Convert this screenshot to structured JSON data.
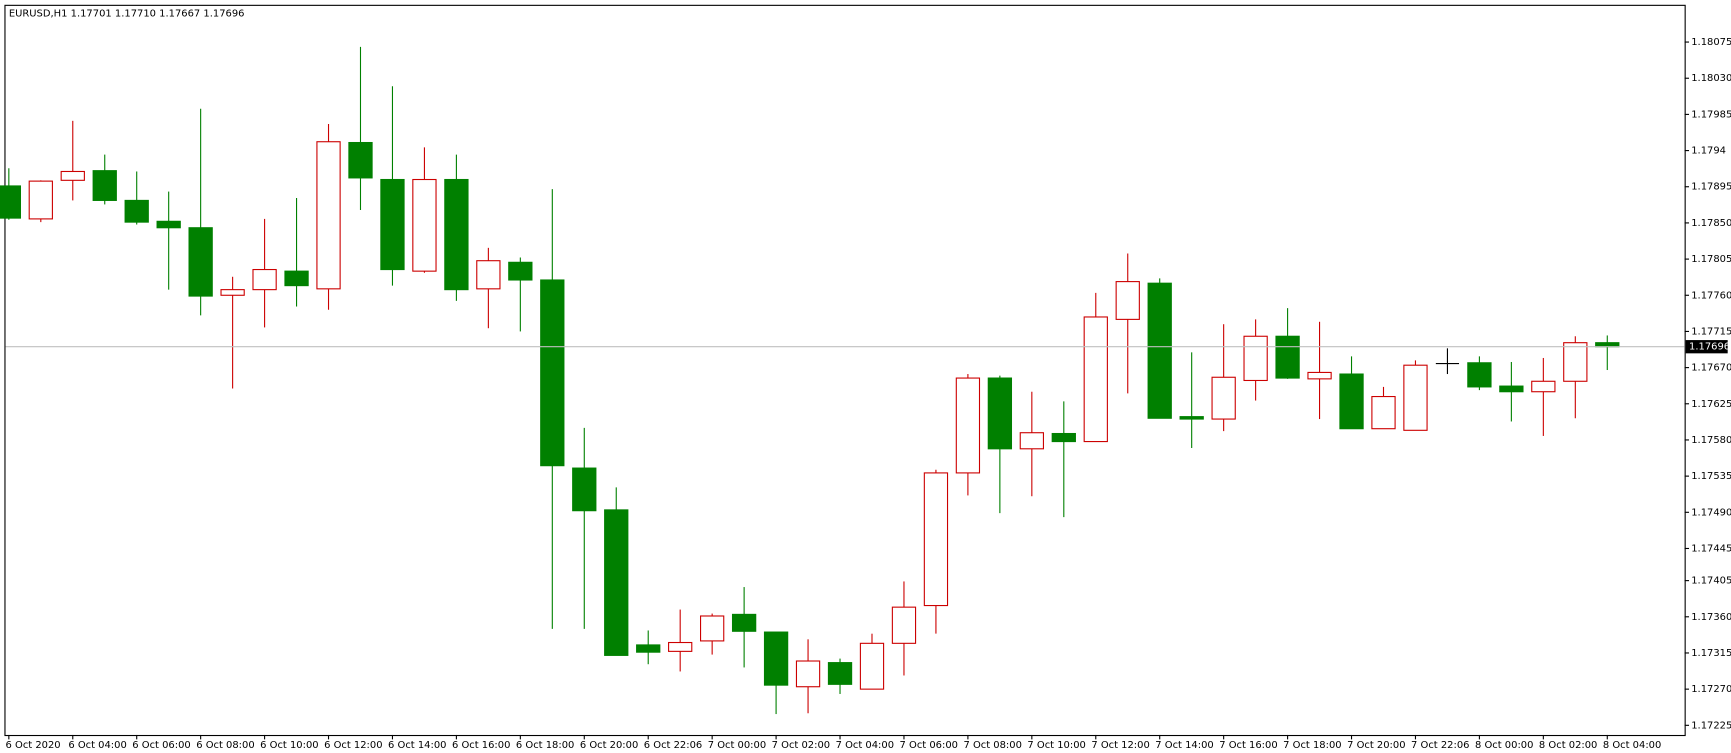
{
  "chart_data": {
    "type": "candlestick",
    "title": "EURUSD,H1  1.17701 1.17710 1.17667 1.17696",
    "categories": [
      "6 Oct 2020",
      null,
      "6 Oct 04:00",
      null,
      "6 Oct 06:00",
      null,
      "6 Oct 08:00",
      null,
      "6 Oct 10:00",
      null,
      "6 Oct 12:00",
      null,
      "6 Oct 14:00",
      null,
      "6 Oct 16:00",
      null,
      "6 Oct 18:00",
      null,
      "6 Oct 20:00",
      null,
      "6 Oct 22:06",
      null,
      "7 Oct 00:00",
      null,
      "7 Oct 02:00",
      null,
      "7 Oct 04:00",
      null,
      "7 Oct 06:00",
      null,
      "7 Oct 08:00",
      null,
      "7 Oct 10:00",
      null,
      "7 Oct 12:00",
      null,
      "7 Oct 14:00",
      null,
      "7 Oct 16:00",
      null,
      "7 Oct 18:00",
      null,
      "7 Oct 20:00",
      null,
      "7 Oct 22:06",
      null,
      "8 Oct 00:00",
      null,
      "8 Oct 02:00",
      null,
      "8 Oct 04:00"
    ],
    "open": [
      1.17896,
      1.17855,
      1.17903,
      1.17915,
      1.17878,
      1.17852,
      1.17844,
      1.1776,
      1.17767,
      1.1779,
      1.17768,
      1.1795,
      1.17904,
      1.1779,
      1.17904,
      1.17768,
      1.17801,
      1.17779,
      1.17545,
      1.17493,
      1.17325,
      1.17317,
      1.1733,
      1.17363,
      1.17341,
      1.17273,
      1.17303,
      1.1727,
      1.17327,
      1.17374,
      1.17539,
      1.17657,
      1.17569,
      1.17588,
      1.17578,
      1.1773,
      1.17775,
      1.17609,
      1.17606,
      1.17654,
      1.17709,
      1.17656,
      1.17662,
      1.17594,
      1.17592,
      1.17675,
      1.17676,
      1.17647,
      1.1764,
      1.17653,
      1.17701
    ],
    "high": [
      1.17918,
      1.17903,
      1.17977,
      1.17935,
      1.17914,
      1.17889,
      1.17992,
      1.17783,
      1.17855,
      1.17881,
      1.17973,
      1.18069,
      1.1802,
      1.17944,
      1.17935,
      1.17819,
      1.17807,
      1.17892,
      1.17595,
      1.17521,
      1.17343,
      1.17369,
      1.17364,
      1.17397,
      1.17341,
      1.17332,
      1.17308,
      1.17339,
      1.17404,
      1.17543,
      1.17662,
      1.1766,
      1.1764,
      1.17628,
      1.17763,
      1.17812,
      1.17781,
      1.17689,
      1.17724,
      1.1773,
      1.17744,
      1.17727,
      1.17684,
      1.17646,
      1.17679,
      1.17694,
      1.17684,
      1.17677,
      1.17682,
      1.17709,
      1.1771
    ],
    "low": [
      1.17854,
      1.17851,
      1.17878,
      1.17873,
      1.17848,
      1.17767,
      1.17735,
      1.17644,
      1.1772,
      1.17746,
      1.17742,
      1.17866,
      1.17772,
      1.17788,
      1.17753,
      1.17719,
      1.17715,
      1.17345,
      1.17345,
      1.17312,
      1.17301,
      1.17292,
      1.17313,
      1.17297,
      1.17239,
      1.1724,
      1.17264,
      1.1727,
      1.17287,
      1.17339,
      1.17511,
      1.17489,
      1.1751,
      1.17484,
      1.17578,
      1.17638,
      1.17607,
      1.1757,
      1.17591,
      1.17629,
      1.17656,
      1.17606,
      1.17594,
      1.17594,
      1.17592,
      1.17662,
      1.17642,
      1.17603,
      1.17585,
      1.17607,
      1.17667
    ],
    "close": [
      1.17856,
      1.17902,
      1.17914,
      1.17878,
      1.17851,
      1.17844,
      1.17759,
      1.17767,
      1.17792,
      1.17772,
      1.17951,
      1.17906,
      1.17792,
      1.17904,
      1.17767,
      1.17803,
      1.17779,
      1.17548,
      1.17492,
      1.17312,
      1.17316,
      1.17328,
      1.17361,
      1.17342,
      1.17275,
      1.17305,
      1.17276,
      1.17327,
      1.17372,
      1.17539,
      1.17657,
      1.17569,
      1.17589,
      1.17578,
      1.17733,
      1.17777,
      1.17607,
      1.17606,
      1.17658,
      1.17709,
      1.17657,
      1.17664,
      1.17594,
      1.17634,
      1.17673,
      1.17675,
      1.17646,
      1.1764,
      1.17653,
      1.17701,
      1.17696
    ],
    "bull_color": "#cc0000",
    "bear_color": "#008000",
    "doji_color": "#000000",
    "last_price": 1.17696,
    "ylim": [
      1.17213,
      1.1812
    ],
    "yticks": [
      1.18075,
      {
        "value": 1.1803,
        "label": "1.18030"
      },
      1.17985,
      1.1794,
      1.17895,
      {
        "value": 1.1785,
        "label": "1.17850"
      },
      1.17805,
      {
        "value": 1.1776,
        "label": "1.17760"
      },
      1.17715,
      {
        "value": 1.1767,
        "label": "1.17670"
      },
      1.17625,
      {
        "value": 1.1758,
        "label": "1.17580"
      },
      1.17535,
      {
        "value": 1.1749,
        "label": "1.17490"
      },
      1.17445,
      1.17405,
      {
        "value": 1.1736,
        "label": "1.17360"
      },
      1.17315,
      {
        "value": 1.1727,
        "label": "1.17270"
      },
      1.17225
    ]
  }
}
